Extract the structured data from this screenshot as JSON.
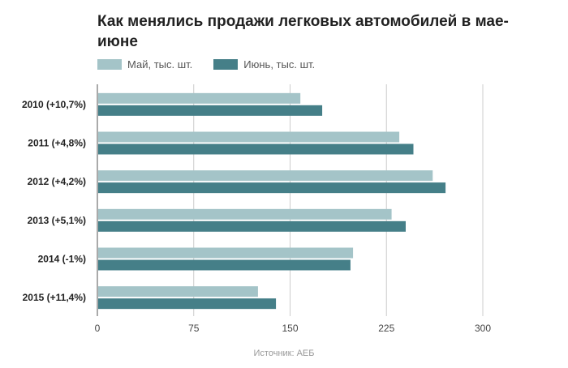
{
  "chart_data": {
    "type": "bar",
    "orientation": "horizontal",
    "title": "Как менялись продажи легковых автомобилей в мае-июне",
    "categories": [
      "2010 (+10,7%)",
      "2011 (+4,8%)",
      "2012 (+4,2%)",
      "2013 (+5,1%)",
      "2014 (-1%)",
      "2015 (+11,4%)"
    ],
    "series": [
      {
        "name": "Май, тыс. шт.",
        "color": "#a4c4c8",
        "values": [
          158,
          235,
          261,
          229,
          199,
          125
        ]
      },
      {
        "name": "Июнь, тыс. шт.",
        "color": "#457f88",
        "values": [
          175,
          246,
          271,
          240,
          197,
          139
        ]
      }
    ],
    "xlim": [
      0,
      300
    ],
    "xticks": [
      "0",
      "75",
      "150",
      "225",
      "300"
    ],
    "xlabel": "",
    "ylabel": "",
    "grid": true,
    "legend": "top-left"
  },
  "source": "Источник: АЕБ"
}
